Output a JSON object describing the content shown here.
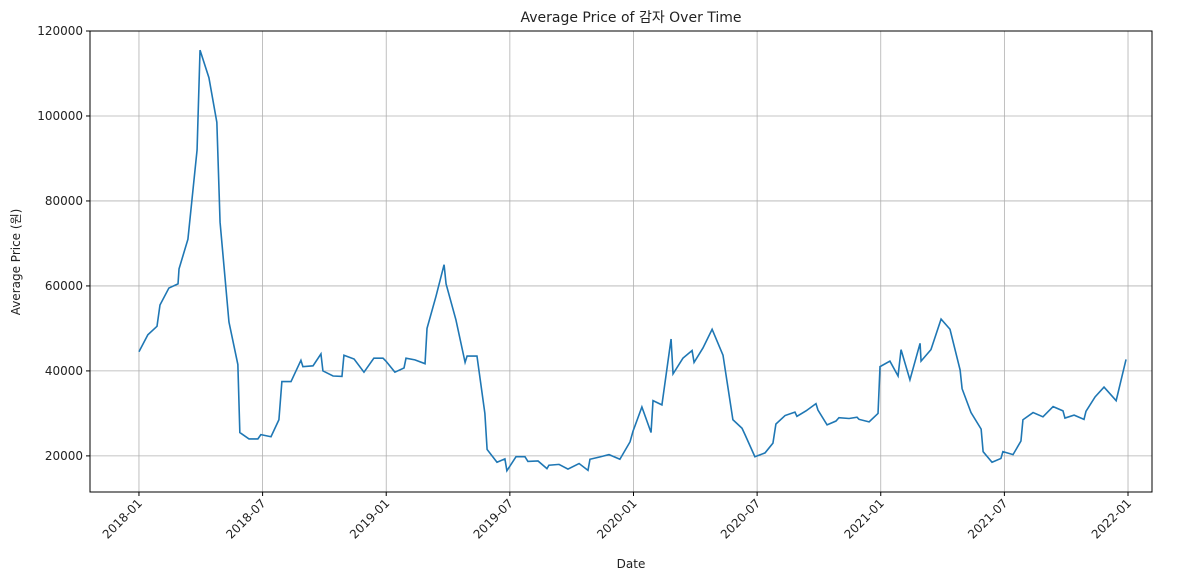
{
  "chart_data": {
    "type": "line",
    "title": "Average Price of 감자 Over Time",
    "xlabel": "Date",
    "ylabel": "Average Price (원)",
    "x": [
      2018.0,
      2018.036,
      2018.073,
      2018.085,
      2018.121,
      2018.158,
      2018.162,
      2018.198,
      2018.235,
      2018.247,
      2018.283,
      2018.315,
      2018.328,
      2018.364,
      2018.4,
      2018.408,
      2018.445,
      2018.481,
      2018.493,
      2018.534,
      2018.566,
      2018.578,
      2018.615,
      2018.655,
      2018.663,
      2018.704,
      2018.736,
      2018.744,
      2018.785,
      2018.821,
      2018.829,
      2018.87,
      2018.91,
      2018.95,
      2018.987,
      2018.999,
      2019.035,
      2019.072,
      2019.08,
      2019.116,
      2019.157,
      2019.165,
      2019.201,
      2019.234,
      2019.242,
      2019.282,
      2019.319,
      2019.327,
      2019.367,
      2019.399,
      2019.408,
      2019.448,
      2019.48,
      2019.488,
      2019.525,
      2019.561,
      2019.573,
      2019.614,
      2019.65,
      2019.658,
      2019.699,
      2019.735,
      2019.78,
      2019.816,
      2019.824,
      2019.861,
      2019.901,
      2019.945,
      2019.986,
      2019.998,
      2020.034,
      2020.071,
      2020.079,
      2020.115,
      2020.152,
      2020.16,
      2020.2,
      2020.237,
      2020.245,
      2020.281,
      2020.318,
      2020.362,
      2020.402,
      2020.439,
      2020.451,
      2020.491,
      2020.532,
      2020.564,
      2020.576,
      2020.613,
      2020.653,
      2020.661,
      2020.698,
      2020.738,
      2020.746,
      2020.783,
      2020.819,
      2020.831,
      2020.872,
      2020.904,
      2020.912,
      2020.953,
      2020.989,
      2020.997,
      2021.037,
      2021.07,
      2021.082,
      2021.118,
      2021.159,
      2021.163,
      2021.203,
      2021.244,
      2021.28,
      2021.321,
      2021.329,
      2021.365,
      2021.406,
      2021.414,
      2021.45,
      2021.486,
      2021.494,
      2021.535,
      2021.567,
      2021.575,
      2021.616,
      2021.656,
      2021.697,
      2021.737,
      2021.745,
      2021.782,
      2021.822,
      2021.83,
      2021.867,
      2021.903,
      2021.952,
      2021.992
    ],
    "series": [
      {
        "name": "Average Price",
        "color": "#1f77b4",
        "values": [
          44500,
          48500,
          50500,
          55500,
          59500,
          60500,
          64000,
          71000,
          92000,
          115500,
          109000,
          98500,
          75000,
          51500,
          41500,
          25500,
          24000,
          24000,
          25000,
          24500,
          28500,
          37500,
          37500,
          42500,
          41000,
          41200,
          44000,
          40000,
          38800,
          38700,
          43700,
          42800,
          39700,
          43000,
          43000,
          42300,
          39700,
          40700,
          43000,
          42600,
          41700,
          50000,
          57500,
          65000,
          60500,
          52000,
          42000,
          43500,
          43500,
          30000,
          21500,
          18500,
          19300,
          16500,
          19800,
          19800,
          18700,
          18800,
          17000,
          17800,
          18000,
          16900,
          18200,
          16600,
          19200,
          19700,
          20300,
          19200,
          23300,
          25800,
          31500,
          25500,
          33000,
          32000,
          47500,
          39300,
          43000,
          44800,
          42000,
          45400,
          49800,
          43700,
          28500,
          26500,
          25000,
          19800,
          20700,
          23000,
          27500,
          29500,
          30300,
          29300,
          30600,
          32300,
          30800,
          27300,
          28200,
          29000,
          28800,
          29100,
          28600,
          28000,
          30000,
          41000,
          42300,
          38800,
          45000,
          37900,
          46500,
          42300,
          45000,
          52200,
          49800,
          40200,
          35800,
          30200,
          26300,
          21000,
          18500,
          19400,
          21000,
          20300,
          23500,
          28500,
          30200,
          29200,
          31600,
          30600,
          28900,
          29600,
          28600,
          30500,
          33900,
          36200,
          33000,
          42700
        ]
      }
    ],
    "xlim": [
      2017.802,
      2022.097
    ],
    "xticks": [
      {
        "value": 2018.0,
        "label": "2018-01"
      },
      {
        "value": 2018.5,
        "label": "2018-07"
      },
      {
        "value": 2019.0,
        "label": "2019-01"
      },
      {
        "value": 2019.5,
        "label": "2019-07"
      },
      {
        "value": 2020.0,
        "label": "2020-01"
      },
      {
        "value": 2020.5,
        "label": "2020-07"
      },
      {
        "value": 2021.0,
        "label": "2021-01"
      },
      {
        "value": 2021.5,
        "label": "2021-07"
      },
      {
        "value": 2022.0,
        "label": "2022-01"
      }
    ],
    "ylim": [
      11500,
      120000
    ],
    "yticks": [
      20000,
      40000,
      60000,
      80000,
      100000,
      120000
    ],
    "grid": true
  }
}
